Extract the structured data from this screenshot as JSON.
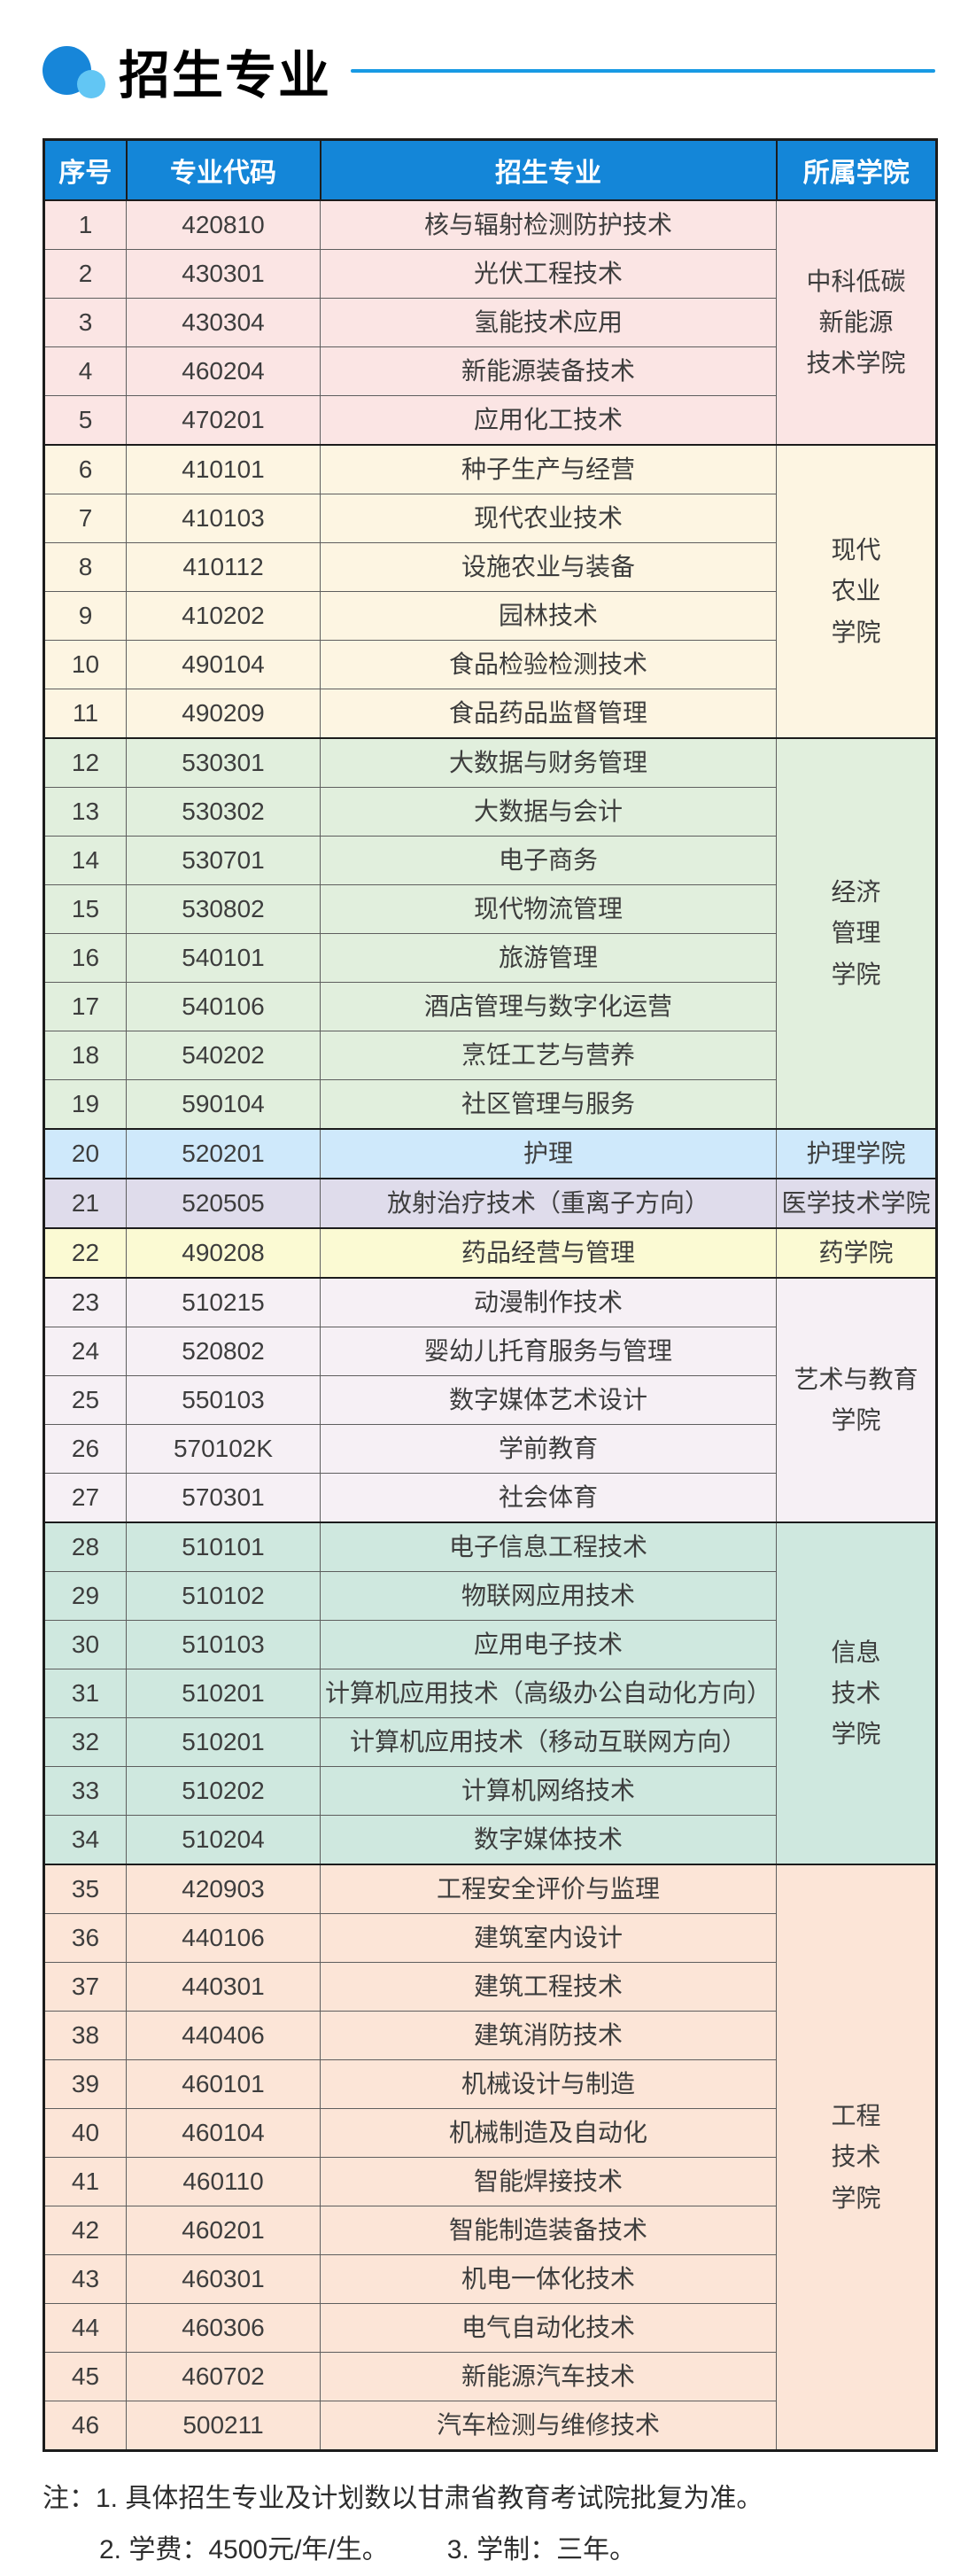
{
  "title": "招生专业",
  "colors": {
    "header_blue": "#1486d8",
    "divider_blue": "#189ae4",
    "logo_big_circle": "#1786d9",
    "logo_small_circle": "#62c6f4",
    "outer_border": "#1c1c1c"
  },
  "table": {
    "headers": [
      "序号",
      "专业代码",
      "招生专业",
      "所属学院"
    ],
    "groups": [
      {
        "college": "中科低碳新能源技术学院",
        "college_display": "中科低碳\n新能源\n技术学院",
        "bg": "#fbe5e4",
        "rows": [
          {
            "serial": "1",
            "code": "420810",
            "major": "核与辐射检测防护技术"
          },
          {
            "serial": "2",
            "code": "430301",
            "major": "光伏工程技术"
          },
          {
            "serial": "3",
            "code": "430304",
            "major": "氢能技术应用"
          },
          {
            "serial": "4",
            "code": "460204",
            "major": "新能源装备技术"
          },
          {
            "serial": "5",
            "code": "470201",
            "major": "应用化工技术"
          }
        ]
      },
      {
        "college": "现代农业学院",
        "college_display": "现代\n农业\n学院",
        "bg": "#fdf5e2",
        "rows": [
          {
            "serial": "6",
            "code": "410101",
            "major": "种子生产与经营"
          },
          {
            "serial": "7",
            "code": "410103",
            "major": "现代农业技术"
          },
          {
            "serial": "8",
            "code": "410112",
            "major": "设施农业与装备"
          },
          {
            "serial": "9",
            "code": "410202",
            "major": "园林技术"
          },
          {
            "serial": "10",
            "code": "490104",
            "major": "食品检验检测技术"
          },
          {
            "serial": "11",
            "code": "490209",
            "major": "食品药品监督管理"
          }
        ]
      },
      {
        "college": "经济管理学院",
        "college_display": "经济\n管理\n学院",
        "bg": "#e1efdd",
        "rows": [
          {
            "serial": "12",
            "code": "530301",
            "major": "大数据与财务管理"
          },
          {
            "serial": "13",
            "code": "530302",
            "major": "大数据与会计"
          },
          {
            "serial": "14",
            "code": "530701",
            "major": "电子商务"
          },
          {
            "serial": "15",
            "code": "530802",
            "major": "现代物流管理"
          },
          {
            "serial": "16",
            "code": "540101",
            "major": "旅游管理"
          },
          {
            "serial": "17",
            "code": "540106",
            "major": "酒店管理与数字化运营"
          },
          {
            "serial": "18",
            "code": "540202",
            "major": "烹饪工艺与营养"
          },
          {
            "serial": "19",
            "code": "590104",
            "major": "社区管理与服务"
          }
        ]
      },
      {
        "college": "护理学院",
        "college_display": "护理学院",
        "bg": "#cfe9fb",
        "rows": [
          {
            "serial": "20",
            "code": "520201",
            "major": "护理"
          }
        ]
      },
      {
        "college": "医学技术学院",
        "college_display": "医学技术学院",
        "bg": "#dfdceb",
        "rows": [
          {
            "serial": "21",
            "code": "520505",
            "major": "放射治疗技术（重离子方向）"
          }
        ]
      },
      {
        "college": "药学院",
        "college_display": "药学院",
        "bg": "#fbfad3",
        "rows": [
          {
            "serial": "22",
            "code": "490208",
            "major": "药品经营与管理"
          }
        ]
      },
      {
        "college": "艺术与教育学院",
        "college_display": "艺术与教育\n学院",
        "bg": "#f6f0f5",
        "rows": [
          {
            "serial": "23",
            "code": "510215",
            "major": "动漫制作技术"
          },
          {
            "serial": "24",
            "code": "520802",
            "major": "婴幼儿托育服务与管理"
          },
          {
            "serial": "25",
            "code": "550103",
            "major": "数字媒体艺术设计"
          },
          {
            "serial": "26",
            "code": "570102K",
            "major": "学前教育"
          },
          {
            "serial": "27",
            "code": "570301",
            "major": "社会体育"
          }
        ]
      },
      {
        "college": "信息技术学院",
        "college_display": "信息\n技术\n学院",
        "bg": "#cfe8df",
        "rows": [
          {
            "serial": "28",
            "code": "510101",
            "major": "电子信息工程技术"
          },
          {
            "serial": "29",
            "code": "510102",
            "major": "物联网应用技术"
          },
          {
            "serial": "30",
            "code": "510103",
            "major": "应用电子技术"
          },
          {
            "serial": "31",
            "code": "510201",
            "major": "计算机应用技术（高级办公自动化方向）"
          },
          {
            "serial": "32",
            "code": "510201",
            "major": "计算机应用技术（移动互联网方向）"
          },
          {
            "serial": "33",
            "code": "510202",
            "major": "计算机网络技术"
          },
          {
            "serial": "34",
            "code": "510204",
            "major": "数字媒体技术"
          }
        ]
      },
      {
        "college": "工程技术学院",
        "college_display": "工程\n技术\n学院",
        "bg": "#fce5d7",
        "rows": [
          {
            "serial": "35",
            "code": "420903",
            "major": "工程安全评价与监理"
          },
          {
            "serial": "36",
            "code": "440106",
            "major": "建筑室内设计"
          },
          {
            "serial": "37",
            "code": "440301",
            "major": "建筑工程技术"
          },
          {
            "serial": "38",
            "code": "440406",
            "major": "建筑消防技术"
          },
          {
            "serial": "39",
            "code": "460101",
            "major": "机械设计与制造"
          },
          {
            "serial": "40",
            "code": "460104",
            "major": "机械制造及自动化"
          },
          {
            "serial": "41",
            "code": "460110",
            "major": "智能焊接技术"
          },
          {
            "serial": "42",
            "code": "460201",
            "major": "智能制造装备技术"
          },
          {
            "serial": "43",
            "code": "460301",
            "major": "机电一体化技术"
          },
          {
            "serial": "44",
            "code": "460306",
            "major": "电气自动化技术"
          },
          {
            "serial": "45",
            "code": "460702",
            "major": "新能源汽车技术"
          },
          {
            "serial": "46",
            "code": "500211",
            "major": "汽车检测与维修技术"
          }
        ]
      }
    ]
  },
  "notes": {
    "line1": "注：1. 具体招生专业及计划数以甘肃省教育考试院批复为准。",
    "line2_fee": "2. 学费：4500元/年/生。",
    "line2_duration": "3. 学制：三年。"
  }
}
